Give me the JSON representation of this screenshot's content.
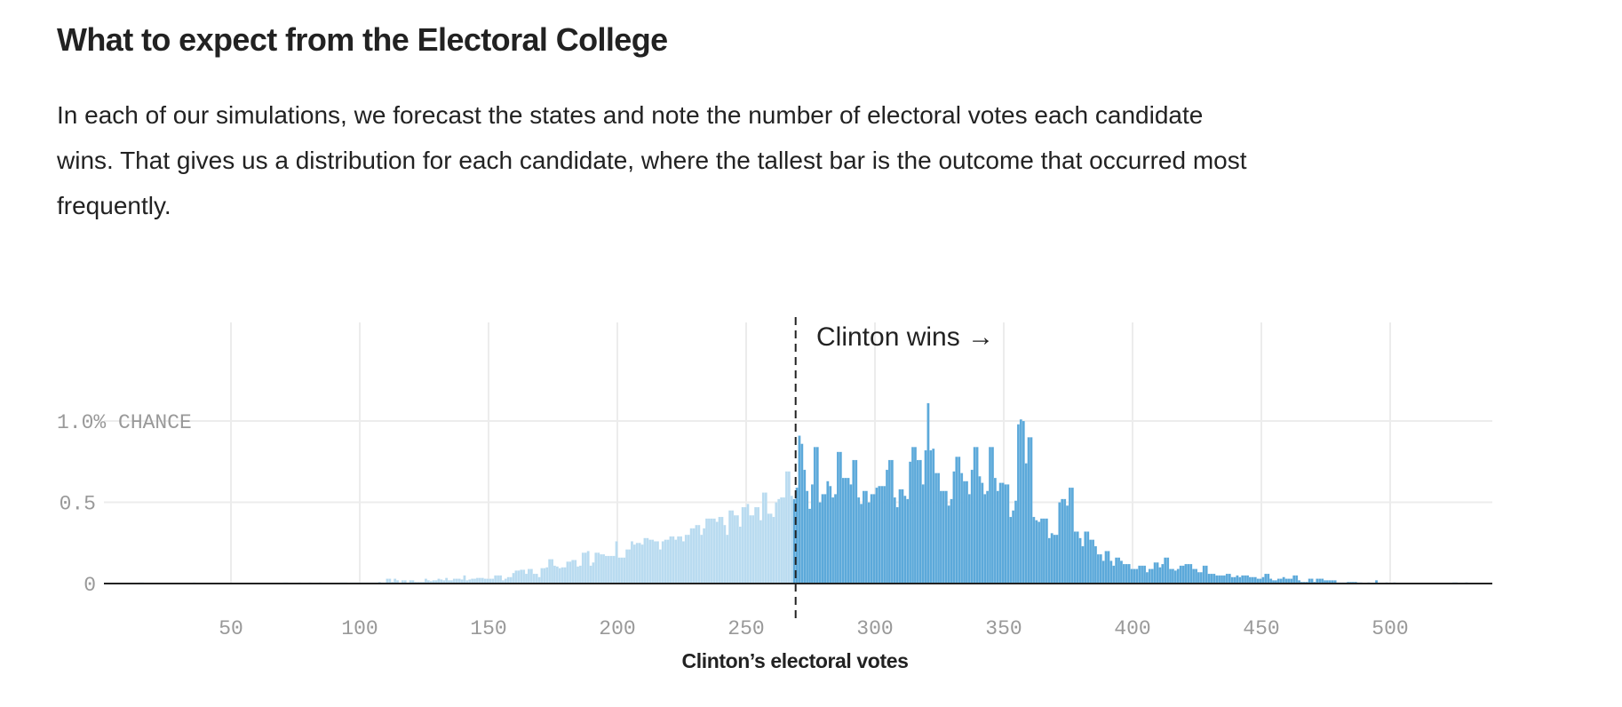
{
  "header": {
    "title": "What to expect from the Electoral College",
    "description_lines": [
      "In each of our simulations, we forecast the states and note the number of electoral votes each candidate",
      "wins. That gives us a distribution for each candidate, where the tallest bar is the outcome that occurred most",
      "frequently."
    ]
  },
  "chart_data": {
    "type": "bar",
    "title": "",
    "xlabel": "Clinton’s electoral votes",
    "ylabel": "",
    "xlim": [
      0,
      538
    ],
    "ylim": [
      0,
      1.5
    ],
    "x_ticks": [
      "50",
      "100",
      "150",
      "200",
      "250",
      "300",
      "350",
      "400",
      "450",
      "500"
    ],
    "y_ticks": [
      {
        "value": 0,
        "label": "0"
      },
      {
        "value": 0.5,
        "label": "0.5"
      },
      {
        "value": 1.0,
        "label": "1.0% CHANCE"
      }
    ],
    "grid": true,
    "threshold": {
      "value": 270,
      "label": "Clinton wins →"
    },
    "colors": {
      "below_threshold": "#b9dbf0",
      "at_or_above_threshold": "#5ca9da",
      "axis": "#222222",
      "grid": "#ececec",
      "tick_text": "#999999"
    },
    "x_start": 0,
    "values": [
      0,
      0,
      0,
      0,
      0,
      0,
      0,
      0,
      0,
      0,
      0,
      0,
      0,
      0,
      0,
      0,
      0.005,
      0.005,
      0,
      0,
      0,
      0,
      0,
      0,
      0,
      0,
      0,
      0,
      0,
      0,
      0,
      0,
      0,
      0,
      0,
      0,
      0,
      0.005,
      0,
      0,
      0,
      0,
      0,
      0,
      0,
      0,
      0,
      0,
      0,
      0,
      0,
      0,
      0,
      0,
      0,
      0,
      0,
      0,
      0,
      0,
      0,
      0,
      0,
      0,
      0,
      0,
      0,
      0,
      0,
      0,
      0,
      0,
      0.005,
      0.005,
      0,
      0,
      0,
      0,
      0.005,
      0,
      0,
      0,
      0.005,
      0,
      0,
      0,
      0.005,
      0,
      0,
      0,
      0,
      0,
      0,
      0,
      0.005,
      0.005,
      0.005,
      0,
      0.005,
      0.005,
      0.005,
      0.005,
      0.005,
      0.005,
      0.005,
      0.005,
      0.005,
      0.005,
      0.005,
      0.01,
      0.005,
      0.005,
      0.03,
      0.03,
      0.01,
      0.03,
      0.02,
      0.005,
      0.02,
      0.02,
      0.005,
      0.02,
      0.02,
      0.01,
      0.01,
      0.01,
      0.01,
      0.03,
      0.02,
      0.015,
      0.02,
      0.02,
      0.03,
      0.025,
      0.02,
      0.035,
      0.02,
      0.02,
      0.03,
      0.03,
      0.03,
      0.025,
      0.05,
      0.02,
      0.025,
      0.03,
      0.03,
      0.035,
      0.035,
      0.035,
      0.03,
      0.03,
      0.03,
      0.03,
      0.05,
      0.05,
      0.05,
      0.02,
      0.03,
      0.04,
      0.04,
      0.065,
      0.08,
      0.08,
      0.085,
      0.085,
      0.06,
      0.09,
      0.09,
      0.06,
      0.06,
      0.04,
      0.095,
      0.095,
      0.1,
      0.15,
      0.15,
      0.11,
      0.105,
      0.095,
      0.1,
      0.1,
      0.135,
      0.135,
      0.145,
      0.145,
      0.105,
      0.11,
      0.19,
      0.19,
      0.2,
      0.11,
      0.13,
      0.19,
      0.19,
      0.18,
      0.18,
      0.17,
      0.17,
      0.17,
      0.17,
      0.26,
      0.16,
      0.16,
      0.16,
      0.21,
      0.21,
      0.26,
      0.24,
      0.25,
      0.25,
      0.24,
      0.28,
      0.28,
      0.27,
      0.27,
      0.26,
      0.26,
      0.21,
      0.26,
      0.27,
      0.27,
      0.29,
      0.29,
      0.27,
      0.29,
      0.29,
      0.26,
      0.3,
      0.3,
      0.34,
      0.34,
      0.36,
      0.36,
      0.3,
      0.34,
      0.4,
      0.4,
      0.4,
      0.4,
      0.38,
      0.41,
      0.41,
      0.36,
      0.3,
      0.45,
      0.45,
      0.42,
      0.42,
      0.35,
      0.47,
      0.47,
      0.49,
      0.42,
      0.42,
      0.47,
      0.47,
      0.39,
      0.56,
      0.56,
      0.43,
      0.43,
      0.41,
      0.5,
      0.52,
      0.53,
      0.53,
      0.69,
      0.69,
      0.54,
      0.52,
      0.59,
      0.91,
      0.86,
      0.7,
      0.57,
      0.46,
      0.61,
      0.84,
      0.84,
      0.5,
      0.55,
      0.55,
      0.63,
      0.6,
      0.53,
      0.55,
      0.81,
      0.81,
      0.65,
      0.65,
      0.65,
      0.61,
      0.76,
      0.76,
      0.53,
      0.49,
      0.57,
      0.57,
      0.5,
      0.55,
      0.55,
      0.59,
      0.6,
      0.6,
      0.6,
      0.7,
      0.76,
      0.76,
      0.53,
      0.47,
      0.58,
      0.58,
      0.54,
      0.52,
      0.75,
      0.84,
      0.84,
      0.76,
      0.76,
      0.61,
      0.82,
      1.11,
      0.82,
      0.83,
      0.68,
      0.68,
      0.57,
      0.57,
      0.57,
      0.48,
      0.52,
      0.69,
      0.78,
      0.78,
      0.68,
      0.63,
      0.63,
      0.55,
      0.7,
      0.84,
      0.84,
      0.66,
      0.62,
      0.55,
      0.57,
      0.84,
      0.84,
      0.65,
      0.57,
      0.62,
      0.62,
      0.61,
      0.61,
      0.41,
      0.45,
      0.51,
      0.98,
      1.01,
      1.0,
      0.74,
      0.9,
      0.9,
      0.41,
      0.39,
      0.38,
      0.4,
      0.4,
      0.4,
      0.28,
      0.31,
      0.3,
      0.3,
      0.5,
      0.52,
      0.52,
      0.48,
      0.59,
      0.59,
      0.32,
      0.32,
      0.28,
      0.23,
      0.32,
      0.32,
      0.27,
      0.27,
      0.23,
      0.18,
      0.18,
      0.14,
      0.2,
      0.2,
      0.14,
      0.11,
      0.16,
      0.16,
      0.14,
      0.12,
      0.12,
      0.12,
      0.09,
      0.09,
      0.09,
      0.11,
      0.11,
      0.11,
      0.07,
      0.09,
      0.09,
      0.13,
      0.13,
      0.1,
      0.12,
      0.16,
      0.16,
      0.09,
      0.09,
      0.08,
      0.09,
      0.11,
      0.11,
      0.12,
      0.12,
      0.12,
      0.09,
      0.09,
      0.07,
      0.07,
      0.11,
      0.11,
      0.06,
      0.06,
      0.06,
      0.05,
      0.05,
      0.05,
      0.05,
      0.06,
      0.06,
      0.04,
      0.04,
      0.05,
      0.04,
      0.05,
      0.05,
      0.05,
      0.04,
      0.04,
      0.04,
      0.03,
      0.03,
      0.04,
      0.06,
      0.06,
      0.03,
      0.02,
      0.02,
      0.03,
      0.03,
      0.04,
      0.03,
      0.03,
      0.03,
      0.05,
      0.05,
      0.02,
      0.01,
      0.01,
      0.01,
      0.03,
      0.03,
      0.01,
      0.03,
      0.03,
      0.03,
      0.02,
      0.02,
      0.02,
      0.02,
      0.02,
      0.005,
      0.005,
      0.005,
      0.005,
      0.01,
      0.01,
      0.01,
      0.01,
      0.005,
      0.005,
      0,
      0,
      0.005,
      0,
      0,
      0.02,
      0,
      0,
      0,
      0.005,
      0,
      0,
      0.005,
      0,
      0,
      0,
      0,
      0,
      0,
      0,
      0,
      0,
      0,
      0,
      0,
      0,
      0,
      0,
      0,
      0,
      0,
      0,
      0,
      0,
      0,
      0.005,
      0.005,
      0,
      0,
      0,
      0.005,
      0,
      0,
      0,
      0,
      0,
      0,
      0
    ]
  }
}
